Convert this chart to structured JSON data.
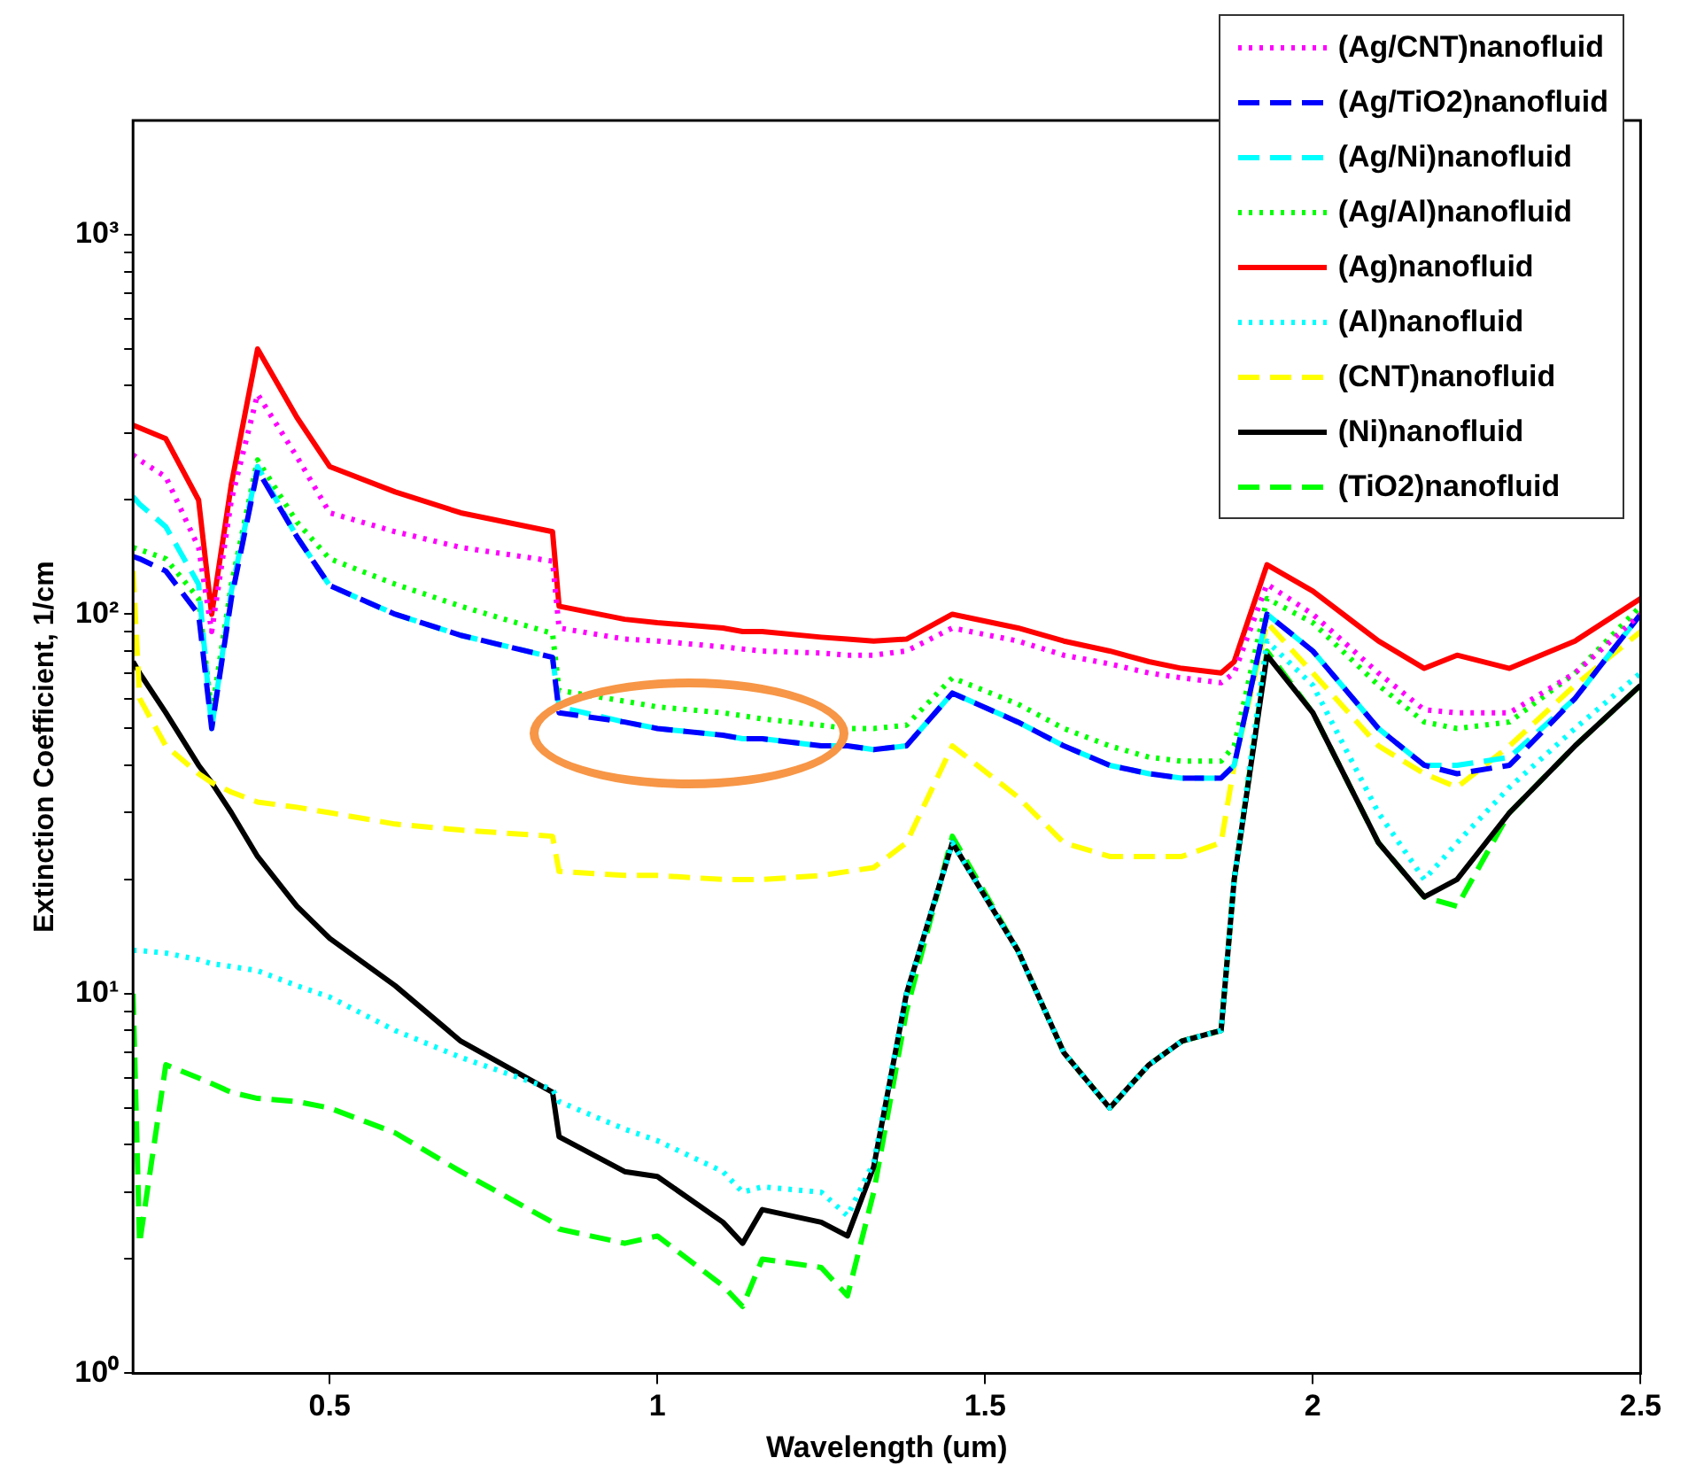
{
  "chart_data": {
    "type": "line",
    "xlabel": "Wavelength (um)",
    "ylabel": "Extinction Coefficient, 1/cm",
    "log": "y",
    "legend": "top right",
    "grid": false,
    "marker": "none",
    "xlim": [
      0.2,
      2.5
    ],
    "xticks": [
      0.5,
      1,
      1.5,
      2,
      2.5
    ],
    "ylim": [
      1,
      2000
    ],
    "yticks": [
      {
        "value": 1,
        "label": "10⁰"
      },
      {
        "value": 2,
        "label": null
      },
      {
        "value": 3,
        "label": null
      },
      {
        "value": 4,
        "label": null
      },
      {
        "value": 5,
        "label": null
      },
      {
        "value": 6,
        "label": null
      },
      {
        "value": 7,
        "label": null
      },
      {
        "value": 8,
        "label": null
      },
      {
        "value": 9,
        "label": null
      },
      {
        "value": 10,
        "label": "10¹"
      },
      {
        "value": 20,
        "label": null
      },
      {
        "value": 30,
        "label": null
      },
      {
        "value": 40,
        "label": null
      },
      {
        "value": 50,
        "label": null
      },
      {
        "value": 60,
        "label": null
      },
      {
        "value": 70,
        "label": null
      },
      {
        "value": 80,
        "label": null
      },
      {
        "value": 90,
        "label": null
      },
      {
        "value": 100,
        "label": "10²"
      },
      {
        "value": 200,
        "label": null
      },
      {
        "value": 300,
        "label": null
      },
      {
        "value": 400,
        "label": null
      },
      {
        "value": 500,
        "label": null
      },
      {
        "value": 600,
        "label": null
      },
      {
        "value": 700,
        "label": null
      },
      {
        "value": 800,
        "label": null
      },
      {
        "value": 900,
        "label": null
      },
      {
        "value": 1000,
        "label": "10³"
      }
    ],
    "x": [
      0.2,
      0.21,
      0.25,
      0.3,
      0.32,
      0.35,
      0.39,
      0.45,
      0.5,
      0.6,
      0.7,
      0.84,
      0.85,
      0.95,
      1.0,
      1.1,
      1.13,
      1.16,
      1.25,
      1.29,
      1.33,
      1.38,
      1.45,
      1.55,
      1.62,
      1.69,
      1.75,
      1.8,
      1.86,
      1.88,
      1.93,
      2.0,
      2.1,
      2.17,
      2.22,
      2.3,
      2.4,
      2.5
    ],
    "series": [
      {
        "name": "(Ag/CNT)nanofluid",
        "color": "#ff00ff",
        "line_style": "dotted",
        "values": [
          263,
          255,
          230,
          150,
          90,
          200,
          380,
          260,
          185,
          165,
          150,
          138,
          92,
          86,
          85,
          82,
          81,
          80,
          79,
          78,
          78,
          80,
          92,
          85,
          78,
          74,
          70,
          68,
          66,
          70,
          120,
          100,
          70,
          56,
          55,
          55,
          70,
          100
        ]
      },
      {
        "name": "(Ag/TiO2)nanofluid",
        "color": "#0000ff",
        "line_style": "dashed",
        "values": [
          142,
          140,
          130,
          100,
          50,
          110,
          240,
          160,
          119,
          100,
          88,
          77,
          55,
          52,
          50,
          48,
          47,
          47,
          45,
          45,
          44,
          45,
          62,
          52,
          45,
          40,
          38,
          37,
          37,
          40,
          100,
          80,
          50,
          40,
          38,
          40,
          60,
          100
        ]
      },
      {
        "name": "(Ag/Ni)nanofluid",
        "color": "#00ffff",
        "line_style": "dashed",
        "values": [
          204,
          195,
          170,
          120,
          50,
          115,
          245,
          160,
          119,
          100,
          88,
          77,
          57,
          52,
          50,
          48,
          47,
          47,
          45,
          45,
          44,
          45,
          62,
          52,
          45,
          40,
          38,
          37,
          37,
          40,
          100,
          80,
          50,
          40,
          40,
          42,
          60,
          100
        ]
      },
      {
        "name": "(Ag/Al)nanofluid",
        "color": "#00ff00",
        "line_style": "dotted",
        "values": [
          150,
          148,
          140,
          110,
          55,
          120,
          255,
          175,
          140,
          120,
          105,
          89,
          63,
          59,
          57,
          55,
          54,
          53,
          51,
          50,
          50,
          51,
          68,
          58,
          50,
          45,
          42,
          41,
          41,
          45,
          110,
          95,
          65,
          52,
          50,
          52,
          70,
          105
        ]
      },
      {
        "name": "(Ag)nanofluid",
        "color": "#ff0000",
        "line_style": "solid",
        "values": [
          315,
          310,
          290,
          200,
          100,
          220,
          500,
          330,
          245,
          210,
          185,
          165,
          105,
          97,
          95,
          92,
          90,
          90,
          87,
          86,
          85,
          86,
          100,
          92,
          85,
          80,
          75,
          72,
          70,
          75,
          135,
          115,
          85,
          72,
          78,
          72,
          85,
          110
        ]
      },
      {
        "name": "(Al)nanofluid",
        "color": "#00ffff",
        "line_style": "dotted",
        "values": [
          13,
          13,
          12.8,
          12.3,
          12,
          11.8,
          11.5,
          10.5,
          9.8,
          8,
          6.8,
          5.6,
          5.2,
          4.4,
          4.1,
          3.4,
          3.0,
          3.1,
          3.0,
          2.6,
          3.6,
          10,
          25,
          13,
          7,
          5,
          6.5,
          7.5,
          8,
          20,
          85,
          65,
          30,
          20,
          25,
          35,
          50,
          70
        ]
      },
      {
        "name": "(CNT)nanofluid",
        "color": "#ffff00",
        "line_style": "dashed",
        "values": [
          130,
          60,
          45,
          38,
          36,
          34,
          32,
          31,
          30,
          28,
          27,
          26,
          21,
          20.5,
          20.5,
          20,
          20,
          20,
          20.5,
          21,
          21.5,
          25,
          45,
          33,
          25,
          23,
          23,
          23,
          25,
          40,
          95,
          70,
          45,
          38,
          35,
          45,
          65,
          90
        ]
      },
      {
        "name": "(Ni)nanofluid",
        "color": "#000000",
        "line_style": "solid",
        "values": [
          75,
          70,
          55,
          40,
          36,
          30,
          23,
          17,
          14,
          10.5,
          7.5,
          5.5,
          4.2,
          3.4,
          3.3,
          2.5,
          2.2,
          2.7,
          2.5,
          2.3,
          3.5,
          10,
          25,
          13,
          7,
          5,
          6.5,
          7.5,
          8,
          20,
          78,
          55,
          25,
          18,
          20,
          30,
          45,
          65
        ]
      },
      {
        "name": "(TiO2)nanofluid",
        "color": "#00ff00",
        "line_style": "dashed",
        "values": [
          10,
          2.2,
          6.5,
          6,
          5.8,
          5.5,
          5.3,
          5.2,
          5,
          4.3,
          3.4,
          2.5,
          2.4,
          2.2,
          2.3,
          1.7,
          1.5,
          2.0,
          1.9,
          1.6,
          3,
          9,
          26,
          13,
          7,
          5,
          6.5,
          7.5,
          8,
          20,
          80,
          55,
          25,
          18,
          17,
          30,
          45,
          65
        ]
      }
    ]
  }
}
